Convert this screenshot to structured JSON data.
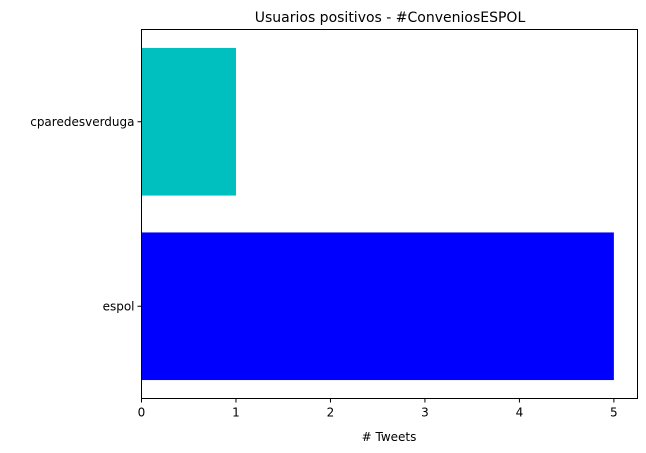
{
  "chart_data": {
    "type": "bar",
    "orientation": "horizontal",
    "title": "Usuarios positivos - #ConveniosESPOL",
    "xlabel": "# Tweets",
    "ylabel": "",
    "xlim": [
      0,
      5.25
    ],
    "xticks": [
      0,
      1,
      2,
      3,
      4,
      5
    ],
    "grid": false,
    "legend": "none",
    "categories": [
      "espol",
      "cparedesverduga"
    ],
    "values": [
      5,
      1
    ],
    "colors": [
      "#0000ff",
      "#00bfbf"
    ]
  }
}
